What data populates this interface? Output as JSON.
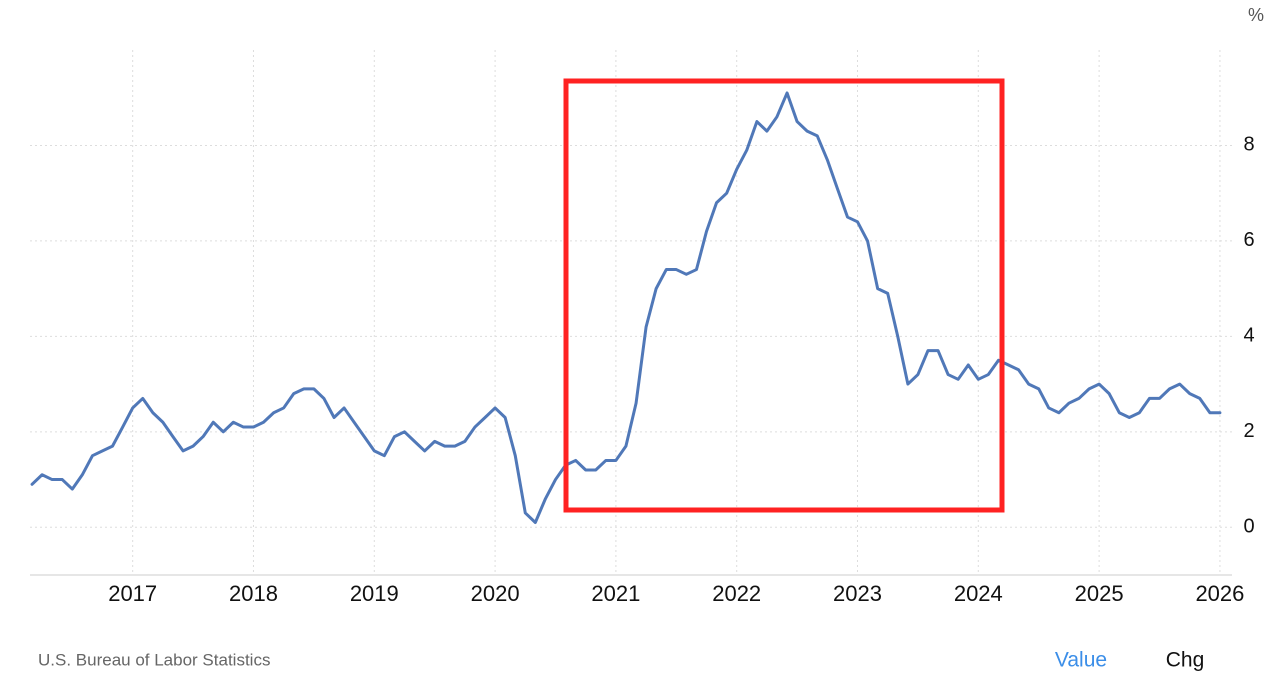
{
  "chart_data": {
    "type": "line",
    "unit": "%",
    "x": [
      2016.167,
      2016.25,
      2016.333,
      2016.417,
      2016.5,
      2016.583,
      2016.667,
      2016.75,
      2016.833,
      2016.917,
      2017,
      2017.083,
      2017.167,
      2017.25,
      2017.333,
      2017.417,
      2017.5,
      2017.583,
      2017.667,
      2017.75,
      2017.833,
      2017.917,
      2018,
      2018.083,
      2018.167,
      2018.25,
      2018.333,
      2018.417,
      2018.5,
      2018.583,
      2018.667,
      2018.75,
      2018.833,
      2018.917,
      2019,
      2019.083,
      2019.167,
      2019.25,
      2019.333,
      2019.417,
      2019.5,
      2019.583,
      2019.667,
      2019.75,
      2019.833,
      2019.917,
      2020,
      2020.083,
      2020.167,
      2020.25,
      2020.333,
      2020.417,
      2020.5,
      2020.583,
      2020.667,
      2020.75,
      2020.833,
      2020.917,
      2021,
      2021.083,
      2021.167,
      2021.25,
      2021.333,
      2021.417,
      2021.5,
      2021.583,
      2021.667,
      2021.75,
      2021.833,
      2021.917,
      2022,
      2022.083,
      2022.167,
      2022.25,
      2022.333,
      2022.417,
      2022.5,
      2022.583,
      2022.667,
      2022.75,
      2022.833,
      2022.917,
      2023,
      2023.083,
      2023.167,
      2023.25,
      2023.333,
      2023.417,
      2023.5,
      2023.583,
      2023.667,
      2023.75,
      2023.833,
      2023.917,
      2024,
      2024.083,
      2024.167,
      2024.25,
      2024.333,
      2024.417,
      2024.5,
      2024.583,
      2024.667,
      2024.75,
      2024.833,
      2024.917,
      2025,
      2025.083,
      2025.167,
      2025.25,
      2025.333,
      2025.417,
      2025.5,
      2025.583,
      2025.667,
      2025.75,
      2025.833,
      2025.917,
      2026
    ],
    "values": [
      0.9,
      1.1,
      1.0,
      1.0,
      0.8,
      1.1,
      1.5,
      1.6,
      1.7,
      2.1,
      2.5,
      2.7,
      2.4,
      2.2,
      1.9,
      1.6,
      1.7,
      1.9,
      2.2,
      2.0,
      2.2,
      2.1,
      2.1,
      2.2,
      2.4,
      2.5,
      2.8,
      2.9,
      2.9,
      2.7,
      2.3,
      2.5,
      2.2,
      1.9,
      1.6,
      1.5,
      1.9,
      2.0,
      1.8,
      1.6,
      1.8,
      1.7,
      1.7,
      1.8,
      2.1,
      2.3,
      2.5,
      2.3,
      1.5,
      0.3,
      0.1,
      0.6,
      1.0,
      1.3,
      1.4,
      1.2,
      1.2,
      1.4,
      1.4,
      1.7,
      2.6,
      4.2,
      5.0,
      5.4,
      5.4,
      5.3,
      5.4,
      6.2,
      6.8,
      7.0,
      7.5,
      7.9,
      8.5,
      8.3,
      8.6,
      9.1,
      8.5,
      8.3,
      8.2,
      7.7,
      7.1,
      6.5,
      6.4,
      6.0,
      5.0,
      4.9,
      4.0,
      3.0,
      3.2,
      3.7,
      3.7,
      3.2,
      3.1,
      3.4,
      3.1,
      3.2,
      3.5,
      3.4,
      3.3,
      3.0,
      2.9,
      2.5,
      2.4,
      2.6,
      2.7,
      2.9,
      3.0,
      2.8,
      2.4,
      2.3,
      2.4,
      2.7,
      2.7,
      2.9,
      3.0,
      2.8,
      2.7,
      2.4,
      2.4
    ],
    "color": "#5078b8",
    "xlim": [
      2016.15,
      2026.1
    ],
    "xticks": [
      2017,
      2018,
      2019,
      2020,
      2021,
      2022,
      2023,
      2024,
      2025,
      2026
    ],
    "ylim": [
      -1,
      10
    ],
    "yticks": [
      0,
      2,
      4,
      6,
      8
    ],
    "grid": true,
    "source": "U.S. Bureau of Labor Statistics",
    "buttons": [
      "Value",
      "Chg"
    ]
  }
}
